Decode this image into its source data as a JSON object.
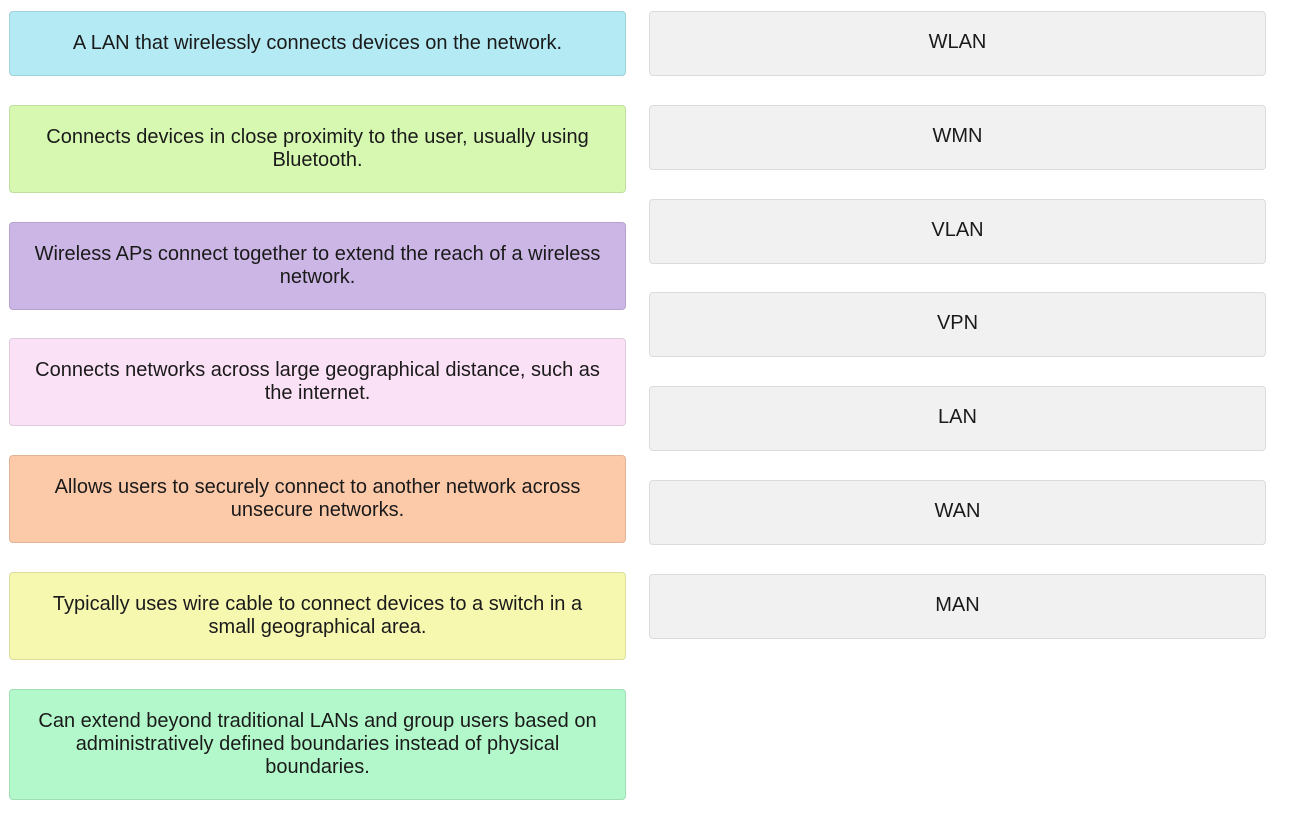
{
  "descriptions": [
    {
      "text": "A LAN that wirelessly connects devices on the network.",
      "color": "#b3eaf4"
    },
    {
      "text": "Connects devices in close proximity to the user, usually using Bluetooth.",
      "color": "#d7f8b1"
    },
    {
      "text": "Wireless APs connect together to extend the reach of a wireless network.",
      "color": "#cbb6e5"
    },
    {
      "text": "Connects networks across large geographical distance, such as the internet.",
      "color": "#fbe1f6"
    },
    {
      "text": "Allows users to securely connect to another network across unsecure networks.",
      "color": "#fcc9a9"
    },
    {
      "text": "Typically uses wire cable to connect devices to a switch in a small geographical area.",
      "color": "#f7f8b0"
    },
    {
      "text": "Can extend beyond traditional LANs and group users based on administratively defined boundaries instead of physical boundaries.",
      "color": "#b3f8cb"
    }
  ],
  "terms": [
    {
      "label": "WLAN"
    },
    {
      "label": "WMN"
    },
    {
      "label": "VLAN"
    },
    {
      "label": "VPN"
    },
    {
      "label": "LAN"
    },
    {
      "label": "WAN"
    },
    {
      "label": "MAN"
    }
  ]
}
